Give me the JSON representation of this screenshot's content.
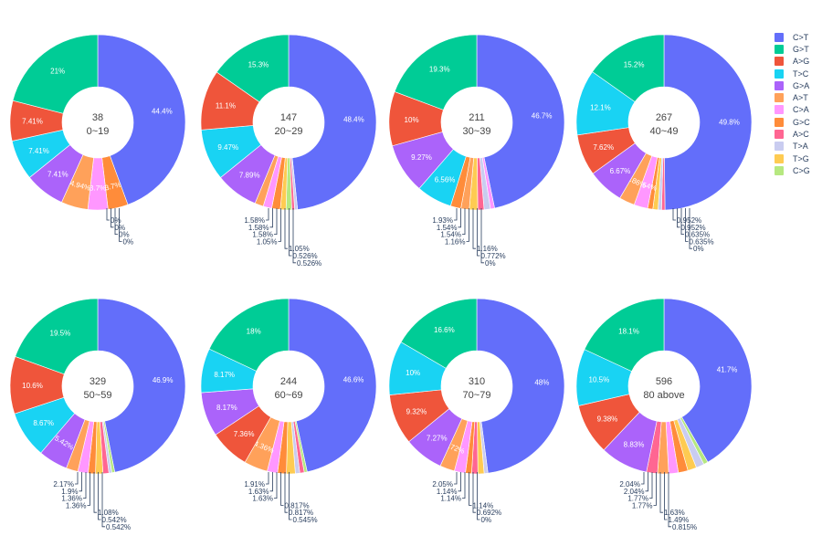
{
  "colors": {
    "C>T": "#636efa",
    "G>T": "#00cc96",
    "A>G": "#ef553b",
    "T>C": "#19d3f3",
    "G>A": "#ab63fa",
    "A>T": "#ffa15a",
    "C>A": "#ff97ff",
    "G>C": "#ff8c3a",
    "A>C": "#ff6692",
    "T>A": "#c9ccf0",
    "T>G": "#fecb52",
    "C>G": "#b6e880"
  },
  "chart_data": {
    "type": "pie",
    "subtype": "donut",
    "legend": [
      "C>T",
      "G>T",
      "A>G",
      "T>C",
      "G>A",
      "A>T",
      "C>A",
      "G>C",
      "A>C",
      "T>A",
      "T>G",
      "C>G"
    ],
    "legend_position": "top-right",
    "charts": [
      {
        "center_count": "38",
        "center_label": "0~19",
        "slices": [
          {
            "label": "C>T",
            "value": 44.4,
            "text": "44.4%"
          },
          {
            "label": "G>C",
            "value": 3.7,
            "text": "3.7%"
          },
          {
            "label": "C>A",
            "value": 3.7,
            "text": "3.7%"
          },
          {
            "label": "A>T",
            "value": 4.94,
            "text": "4.94%"
          },
          {
            "label": "G>A",
            "value": 7.41,
            "text": "7.41%"
          },
          {
            "label": "T>C",
            "value": 7.41,
            "text": "7.41%"
          },
          {
            "label": "A>G",
            "value": 7.41,
            "text": "7.41%"
          },
          {
            "label": "G>T",
            "value": 21,
            "text": "21%"
          }
        ],
        "outside_labels": [
          "0%",
          "0%",
          "0%",
          "0%"
        ]
      },
      {
        "center_count": "147",
        "center_label": "20~29",
        "slices": [
          {
            "label": "C>T",
            "value": 48.4,
            "text": "48.4%"
          },
          {
            "label": "T>A",
            "value": 0.526,
            "text": "0.526%"
          },
          {
            "label": "A>C",
            "value": 0.526,
            "text": "0.526%"
          },
          {
            "label": "C>G",
            "value": 1.05,
            "text": "1.05%"
          },
          {
            "label": "T>G",
            "value": 1.05,
            "text": "1.05%"
          },
          {
            "label": "G>C",
            "value": 1.58,
            "text": "1.58%"
          },
          {
            "label": "C>A",
            "value": 1.58,
            "text": "1.58%"
          },
          {
            "label": "A>T",
            "value": 1.58,
            "text": "1.58%"
          },
          {
            "label": "G>A",
            "value": 7.89,
            "text": "7.89%"
          },
          {
            "label": "T>C",
            "value": 9.47,
            "text": "9.47%"
          },
          {
            "label": "A>G",
            "value": 11.1,
            "text": "11.1%"
          },
          {
            "label": "G>T",
            "value": 15.3,
            "text": "15.3%"
          }
        ],
        "outside_labels": [
          "1.58%",
          "1.58%",
          "1.58%",
          "1.05%",
          "1.05%",
          "0.526%",
          "0.526%"
        ]
      },
      {
        "center_count": "211",
        "center_label": "30~39",
        "slices": [
          {
            "label": "C>T",
            "value": 46.7,
            "text": "46.7%"
          },
          {
            "label": "C>G",
            "value": 0,
            "text": "0%"
          },
          {
            "label": "C>A",
            "value": 0.772,
            "text": "0.772%"
          },
          {
            "label": "T>A",
            "value": 1.16,
            "text": "1.16%"
          },
          {
            "label": "A>C",
            "value": 1.16,
            "text": "1.16%"
          },
          {
            "label": "T>G",
            "value": 1.54,
            "text": "1.54%"
          },
          {
            "label": "A>T",
            "value": 1.54,
            "text": "1.54%"
          },
          {
            "label": "G>C",
            "value": 1.93,
            "text": "1.93%"
          },
          {
            "label": "T>C",
            "value": 6.56,
            "text": "6.56%"
          },
          {
            "label": "G>A",
            "value": 9.27,
            "text": "9.27%"
          },
          {
            "label": "A>G",
            "value": 10,
            "text": "10%"
          },
          {
            "label": "G>T",
            "value": 19.3,
            "text": "19.3%"
          }
        ],
        "outside_labels": [
          "1.93%",
          "1.54%",
          "1.54%",
          "1.16%",
          "1.16%",
          "0.772%",
          "0%"
        ]
      },
      {
        "center_count": "267",
        "center_label": "40~49",
        "slices": [
          {
            "label": "C>T",
            "value": 49.8,
            "text": "49.8%"
          },
          {
            "label": "C>G",
            "value": 0,
            "text": "0%"
          },
          {
            "label": "A>C",
            "value": 0.635,
            "text": "0.635%"
          },
          {
            "label": "T>A",
            "value": 0.635,
            "text": "0.635%"
          },
          {
            "label": "T>G",
            "value": 0.952,
            "text": "0.952%"
          },
          {
            "label": "G>C",
            "value": 0.952,
            "text": "0.952%"
          },
          {
            "label": "C>A",
            "value": 2.54,
            "text": "2.54%"
          },
          {
            "label": "A>T",
            "value": 2.86,
            "text": "2.86%"
          },
          {
            "label": "G>A",
            "value": 6.67,
            "text": "6.67%"
          },
          {
            "label": "A>G",
            "value": 7.62,
            "text": "7.62%"
          },
          {
            "label": "T>C",
            "value": 12.1,
            "text": "12.1%"
          },
          {
            "label": "G>T",
            "value": 15.2,
            "text": "15.2%"
          }
        ],
        "outside_labels": [
          "0.952%",
          "0.952%",
          "0.635%",
          "0.635%",
          "0%"
        ]
      },
      {
        "center_count": "329",
        "center_label": "50~59",
        "slices": [
          {
            "label": "C>T",
            "value": 46.9,
            "text": "46.9%"
          },
          {
            "label": "C>G",
            "value": 0.542,
            "text": "0.542%"
          },
          {
            "label": "T>A",
            "value": 0.542,
            "text": "0.542%"
          },
          {
            "label": "A>C",
            "value": 1.08,
            "text": "1.08%"
          },
          {
            "label": "T>G",
            "value": 1.36,
            "text": "1.36%"
          },
          {
            "label": "G>C",
            "value": 1.36,
            "text": "1.36%"
          },
          {
            "label": "C>A",
            "value": 1.9,
            "text": "1.9%"
          },
          {
            "label": "A>T",
            "value": 2.17,
            "text": "2.17%"
          },
          {
            "label": "G>A",
            "value": 5.42,
            "text": "5.42%"
          },
          {
            "label": "T>C",
            "value": 8.67,
            "text": "8.67%"
          },
          {
            "label": "A>G",
            "value": 10.6,
            "text": "10.6%"
          },
          {
            "label": "G>T",
            "value": 19.5,
            "text": "19.5%"
          }
        ],
        "outside_labels": [
          "2.17%",
          "1.9%",
          "1.36%",
          "1.36%",
          "1.08%",
          "0.542%",
          "0.542%"
        ]
      },
      {
        "center_count": "244",
        "center_label": "60~69",
        "slices": [
          {
            "label": "C>T",
            "value": 46.6,
            "text": "46.6%"
          },
          {
            "label": "C>G",
            "value": 0.545,
            "text": "0.545%"
          },
          {
            "label": "A>C",
            "value": 0.817,
            "text": "0.817%"
          },
          {
            "label": "T>A",
            "value": 0.817,
            "text": "0.817%"
          },
          {
            "label": "T>G",
            "value": 1.63,
            "text": "1.63%"
          },
          {
            "label": "G>C",
            "value": 1.63,
            "text": "1.63%"
          },
          {
            "label": "C>A",
            "value": 1.91,
            "text": "1.91%"
          },
          {
            "label": "A>T",
            "value": 4.36,
            "text": "4.36%"
          },
          {
            "label": "A>G",
            "value": 7.36,
            "text": "7.36%"
          },
          {
            "label": "G>A",
            "value": 8.17,
            "text": "8.17%"
          },
          {
            "label": "T>C",
            "value": 8.17,
            "text": "8.17%"
          },
          {
            "label": "G>T",
            "value": 18,
            "text": "18%"
          }
        ],
        "outside_labels": [
          "1.91%",
          "1.63%",
          "1.63%",
          "0.817%",
          "0.817%",
          "0.545%"
        ]
      },
      {
        "center_count": "310",
        "center_label": "70~79",
        "slices": [
          {
            "label": "C>T",
            "value": 48,
            "text": "48%"
          },
          {
            "label": "C>G",
            "value": 0,
            "text": "0%"
          },
          {
            "label": "T>A",
            "value": 0.692,
            "text": "0.692%"
          },
          {
            "label": "T>G",
            "value": 1.14,
            "text": "1.14%"
          },
          {
            "label": "A>C",
            "value": 1.14,
            "text": "1.14%"
          },
          {
            "label": "G>C",
            "value": 1.14,
            "text": "1.14%"
          },
          {
            "label": "C>A",
            "value": 2.05,
            "text": "2.05%"
          },
          {
            "label": "A>T",
            "value": 2.72,
            "text": "2.72%"
          },
          {
            "label": "G>A",
            "value": 7.27,
            "text": "7.27%"
          },
          {
            "label": "A>G",
            "value": 9.32,
            "text": "9.32%"
          },
          {
            "label": "T>C",
            "value": 10,
            "text": "10%"
          },
          {
            "label": "G>T",
            "value": 16.6,
            "text": "16.6%"
          }
        ],
        "outside_labels": [
          "2.05%",
          "1.14%",
          "1.14%",
          "1.14%",
          "0.692%",
          "0%"
        ]
      },
      {
        "center_count": "596",
        "center_label": "80 above",
        "slices": [
          {
            "label": "C>T",
            "value": 41.7,
            "text": "41.7%"
          },
          {
            "label": "C>G",
            "value": 0.815,
            "text": "0.815%"
          },
          {
            "label": "T>A",
            "value": 1.49,
            "text": "1.49%"
          },
          {
            "label": "T>G",
            "value": 1.63,
            "text": "1.63%"
          },
          {
            "label": "G>C",
            "value": 1.77,
            "text": "1.77%"
          },
          {
            "label": "C>A",
            "value": 1.77,
            "text": "1.77%"
          },
          {
            "label": "A>T",
            "value": 2.04,
            "text": "2.04%"
          },
          {
            "label": "A>C",
            "value": 2.04,
            "text": "2.04%"
          },
          {
            "label": "G>A",
            "value": 8.83,
            "text": "8.83%"
          },
          {
            "label": "A>G",
            "value": 9.38,
            "text": "9.38%"
          },
          {
            "label": "T>C",
            "value": 10.5,
            "text": "10.5%"
          },
          {
            "label": "G>T",
            "value": 18.1,
            "text": "18.1%"
          }
        ],
        "outside_labels": [
          "2.04%",
          "2.04%",
          "1.77%",
          "1.77%",
          "1.63%",
          "1.49%",
          "0.815%"
        ]
      }
    ]
  }
}
